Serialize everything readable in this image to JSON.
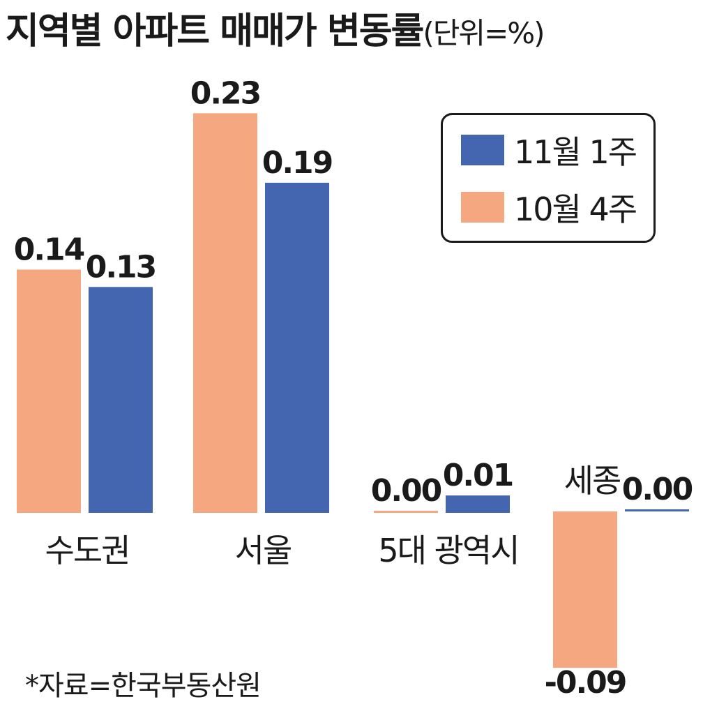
{
  "title": "지역별 아파트 매매가 변동률",
  "unit": "(단위=%)",
  "source": "*자료=한국부동산원",
  "colors": {
    "oct_week4": "#f5a77f",
    "nov_week1": "#4466b0"
  },
  "legend": [
    {
      "label": "11월 1주",
      "color": "#4466b0"
    },
    {
      "label": "10월 4주",
      "color": "#f5a77f"
    }
  ],
  "chart_data": {
    "type": "bar",
    "categories": [
      "수도권",
      "서울",
      "5대 광역시",
      "세종"
    ],
    "series": [
      {
        "name": "10월 4주",
        "values": [
          0.14,
          0.23,
          0.0,
          -0.09
        ]
      },
      {
        "name": "11월 1주",
        "values": [
          0.13,
          0.19,
          0.01,
          0.0
        ]
      }
    ],
    "value_labels": {
      "10월 4주": [
        "0.14",
        "0.23",
        "0.00",
        "-0.09"
      ],
      "11월 1주": [
        "0.13",
        "0.19",
        "0.01",
        "0.00"
      ]
    },
    "grid": false
  }
}
